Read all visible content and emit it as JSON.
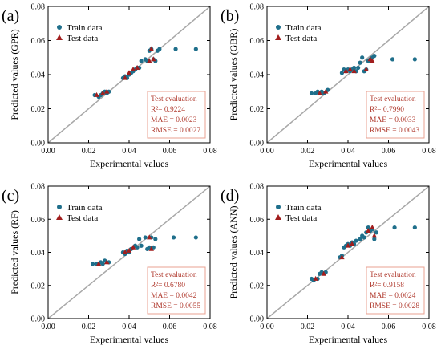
{
  "colors": {
    "train": "#1f6f8b",
    "test": "#a11d1d",
    "diagonal": "#a8a8a8",
    "evalBorder": "#e8a090",
    "evalText": "#b03a2e",
    "axis": "#000000"
  },
  "chart_data": [
    {
      "type": "scatter",
      "panel_label": "(a)",
      "xlabel": "Experimental values",
      "ylabel": "Predicted values (GPR)",
      "xlim": [
        0,
        0.08
      ],
      "ylim": [
        0,
        0.08
      ],
      "ticks": [
        "0.00",
        "0.02",
        "0.04",
        "0.06",
        "0.08"
      ],
      "legend": [
        "Train data",
        "Test data"
      ],
      "evaluation": {
        "title": "Test evaluation",
        "r2": "R²= 0.9224",
        "mae": "MAE = 0.0023",
        "rmse": "RMSE = 0.0027"
      },
      "series": [
        {
          "name": "Train data",
          "marker": "circle",
          "points": [
            [
              0.023,
              0.028
            ],
            [
              0.025,
              0.027
            ],
            [
              0.026,
              0.028
            ],
            [
              0.027,
              0.029
            ],
            [
              0.028,
              0.03
            ],
            [
              0.029,
              0.029
            ],
            [
              0.03,
              0.03
            ],
            [
              0.037,
              0.038
            ],
            [
              0.038,
              0.039
            ],
            [
              0.039,
              0.038
            ],
            [
              0.04,
              0.04
            ],
            [
              0.041,
              0.041
            ],
            [
              0.042,
              0.042
            ],
            [
              0.043,
              0.043
            ],
            [
              0.044,
              0.044
            ],
            [
              0.045,
              0.044
            ],
            [
              0.046,
              0.048
            ],
            [
              0.048,
              0.049
            ],
            [
              0.049,
              0.048
            ],
            [
              0.05,
              0.054
            ],
            [
              0.051,
              0.055
            ],
            [
              0.052,
              0.049
            ],
            [
              0.053,
              0.048
            ],
            [
              0.054,
              0.054
            ],
            [
              0.055,
              0.055
            ],
            [
              0.063,
              0.055
            ],
            [
              0.073,
              0.055
            ]
          ]
        },
        {
          "name": "Test data",
          "marker": "triangle",
          "points": [
            [
              0.024,
              0.028
            ],
            [
              0.027,
              0.029
            ],
            [
              0.029,
              0.03
            ],
            [
              0.038,
              0.038
            ],
            [
              0.04,
              0.041
            ],
            [
              0.042,
              0.043
            ],
            [
              0.044,
              0.044
            ],
            [
              0.05,
              0.048
            ],
            [
              0.051,
              0.055
            ],
            [
              0.052,
              0.049
            ]
          ]
        }
      ]
    },
    {
      "type": "scatter",
      "panel_label": "(b)",
      "xlabel": "Experimental values",
      "ylabel": "Predicted values (GBR)",
      "xlim": [
        0,
        0.08
      ],
      "ylim": [
        0,
        0.08
      ],
      "ticks": [
        "0.00",
        "0.02",
        "0.04",
        "0.06",
        "0.08"
      ],
      "legend": [
        "Train data",
        "Test data"
      ],
      "evaluation": {
        "title": "Test evaluation",
        "r2": "R²= 0.7990",
        "mae": "MAE = 0.0033",
        "rmse": "RMSE = 0.0043"
      },
      "series": [
        {
          "name": "Train data",
          "marker": "circle",
          "points": [
            [
              0.022,
              0.029
            ],
            [
              0.024,
              0.029
            ],
            [
              0.025,
              0.03
            ],
            [
              0.027,
              0.03
            ],
            [
              0.028,
              0.029
            ],
            [
              0.03,
              0.031
            ],
            [
              0.037,
              0.041
            ],
            [
              0.038,
              0.043
            ],
            [
              0.039,
              0.042
            ],
            [
              0.04,
              0.043
            ],
            [
              0.041,
              0.042
            ],
            [
              0.042,
              0.043
            ],
            [
              0.043,
              0.044
            ],
            [
              0.044,
              0.042
            ],
            [
              0.045,
              0.044
            ],
            [
              0.046,
              0.047
            ],
            [
              0.047,
              0.05
            ],
            [
              0.048,
              0.042
            ],
            [
              0.049,
              0.043
            ],
            [
              0.05,
              0.048
            ],
            [
              0.051,
              0.049
            ],
            [
              0.052,
              0.05
            ],
            [
              0.053,
              0.051
            ],
            [
              0.062,
              0.049
            ],
            [
              0.073,
              0.049
            ]
          ]
        },
        {
          "name": "Test data",
          "marker": "triangle",
          "points": [
            [
              0.026,
              0.029
            ],
            [
              0.029,
              0.03
            ],
            [
              0.039,
              0.042
            ],
            [
              0.041,
              0.043
            ],
            [
              0.043,
              0.042
            ],
            [
              0.049,
              0.043
            ],
            [
              0.051,
              0.049
            ],
            [
              0.052,
              0.048
            ]
          ]
        }
      ]
    },
    {
      "type": "scatter",
      "panel_label": "(c)",
      "xlabel": "Experimental values",
      "ylabel": "Predicted values (RF)",
      "xlim": [
        0,
        0.08
      ],
      "ylim": [
        0,
        0.08
      ],
      "ticks": [
        "0.00",
        "0.02",
        "0.04",
        "0.06",
        "0.08"
      ],
      "legend": [
        "Train data",
        "Test data"
      ],
      "evaluation": {
        "title": "Test evaluation",
        "r2": "R²= 0.6780",
        "mae": "MAE = 0.0042",
        "rmse": "RMSE = 0.0055"
      },
      "series": [
        {
          "name": "Train data",
          "marker": "circle",
          "points": [
            [
              0.022,
              0.033
            ],
            [
              0.024,
              0.033
            ],
            [
              0.026,
              0.034
            ],
            [
              0.027,
              0.033
            ],
            [
              0.028,
              0.035
            ],
            [
              0.03,
              0.034
            ],
            [
              0.037,
              0.04
            ],
            [
              0.038,
              0.039
            ],
            [
              0.039,
              0.041
            ],
            [
              0.04,
              0.04
            ],
            [
              0.041,
              0.042
            ],
            [
              0.043,
              0.044
            ],
            [
              0.044,
              0.043
            ],
            [
              0.045,
              0.048
            ],
            [
              0.046,
              0.044
            ],
            [
              0.048,
              0.049
            ],
            [
              0.049,
              0.042
            ],
            [
              0.05,
              0.043
            ],
            [
              0.051,
              0.049
            ],
            [
              0.052,
              0.043
            ],
            [
              0.053,
              0.048
            ],
            [
              0.062,
              0.049
            ],
            [
              0.073,
              0.049
            ]
          ]
        },
        {
          "name": "Test data",
          "marker": "triangle",
          "points": [
            [
              0.025,
              0.033
            ],
            [
              0.029,
              0.034
            ],
            [
              0.038,
              0.04
            ],
            [
              0.04,
              0.041
            ],
            [
              0.042,
              0.043
            ],
            [
              0.05,
              0.049
            ],
            [
              0.051,
              0.042
            ]
          ]
        }
      ]
    },
    {
      "type": "scatter",
      "panel_label": "(d)",
      "xlabel": "Experimental values",
      "ylabel": "Predicted values (ANN)",
      "xlim": [
        0,
        0.08
      ],
      "ylim": [
        0,
        0.08
      ],
      "ticks": [
        "0.00",
        "0.02",
        "0.04",
        "0.06",
        "0.08"
      ],
      "legend": [
        "Train data",
        "Test data"
      ],
      "evaluation": {
        "title": "Test evaluation",
        "r2": "R²= 0.9158",
        "mae": "MAE = 0.0024",
        "rmse": "RMSE = 0.0028"
      },
      "series": [
        {
          "name": "Train data",
          "marker": "circle",
          "points": [
            [
              0.022,
              0.024
            ],
            [
              0.023,
              0.023
            ],
            [
              0.025,
              0.024
            ],
            [
              0.026,
              0.027
            ],
            [
              0.027,
              0.028
            ],
            [
              0.029,
              0.028
            ],
            [
              0.036,
              0.037
            ],
            [
              0.037,
              0.038
            ],
            [
              0.038,
              0.043
            ],
            [
              0.039,
              0.044
            ],
            [
              0.04,
              0.045
            ],
            [
              0.041,
              0.044
            ],
            [
              0.042,
              0.046
            ],
            [
              0.043,
              0.045
            ],
            [
              0.044,
              0.047
            ],
            [
              0.046,
              0.048
            ],
            [
              0.047,
              0.05
            ],
            [
              0.048,
              0.049
            ],
            [
              0.049,
              0.052
            ],
            [
              0.05,
              0.055
            ],
            [
              0.051,
              0.053
            ],
            [
              0.052,
              0.054
            ],
            [
              0.053,
              0.048
            ],
            [
              0.054,
              0.052
            ],
            [
              0.063,
              0.055
            ],
            [
              0.073,
              0.055
            ]
          ]
        },
        {
          "name": "Test data",
          "marker": "triangle",
          "points": [
            [
              0.024,
              0.024
            ],
            [
              0.028,
              0.027
            ],
            [
              0.037,
              0.037
            ],
            [
              0.04,
              0.044
            ],
            [
              0.042,
              0.045
            ],
            [
              0.05,
              0.053
            ],
            [
              0.052,
              0.055
            ],
            [
              0.053,
              0.05
            ]
          ]
        }
      ]
    }
  ]
}
